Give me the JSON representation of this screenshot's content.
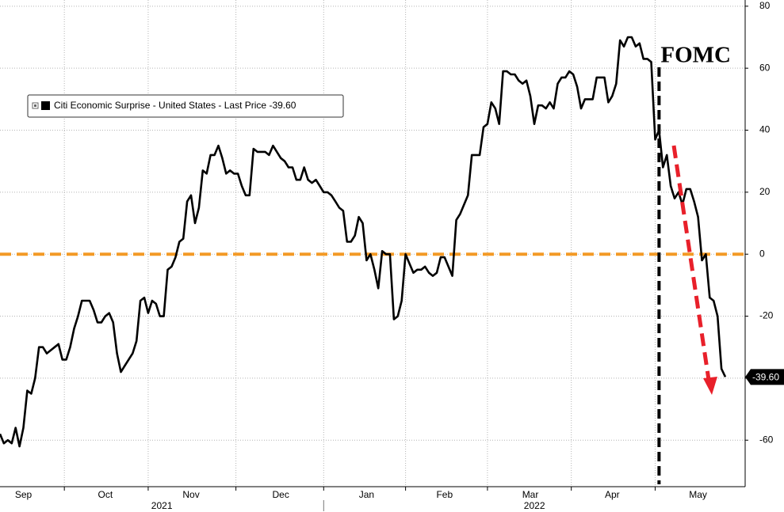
{
  "chart_data": {
    "type": "line",
    "categories": [
      null,
      null,
      null,
      null,
      null,
      null,
      "Sep",
      null,
      null,
      null,
      null,
      null,
      null,
      null,
      null,
      null,
      null,
      null,
      null,
      null,
      null,
      null,
      null,
      null,
      null,
      null,
      null,
      "Oct",
      null,
      null,
      null,
      null,
      null,
      null,
      null,
      null,
      null,
      null,
      null,
      null,
      null,
      null,
      null,
      null,
      null,
      null,
      null,
      null,
      null,
      "Nov",
      null,
      null,
      null,
      null,
      null,
      null,
      null,
      null,
      null,
      null,
      null,
      null,
      null,
      null,
      null,
      null,
      null,
      null,
      null,
      null,
      null,
      null,
      "Dec",
      null,
      null,
      null,
      null,
      null,
      null,
      null,
      null,
      null,
      null,
      null,
      null,
      null,
      null,
      null,
      null,
      null,
      null,
      null,
      null,
      null,
      "Jan",
      null,
      null,
      null,
      null,
      null,
      null,
      null,
      null,
      null,
      null,
      null,
      null,
      null,
      null,
      null,
      null,
      null,
      null,
      null,
      "Feb",
      null,
      null,
      null,
      null,
      null,
      null,
      null,
      null,
      null,
      null,
      null,
      null,
      null,
      null,
      null,
      null,
      null,
      null,
      null,
      null,
      null,
      "Mar",
      null,
      null,
      null,
      null,
      null,
      null,
      null,
      null,
      null,
      null,
      null,
      null,
      null,
      null,
      null,
      null,
      null,
      null,
      null,
      null,
      "Apr",
      null,
      null,
      null,
      null,
      null,
      null,
      null,
      null,
      null,
      null,
      null,
      null,
      null,
      null,
      null,
      null,
      null,
      null,
      null,
      null,
      null,
      "May",
      null,
      null,
      null,
      null,
      null,
      null,
      null
    ],
    "years": [
      {
        "label": "2021",
        "months": 4
      },
      {
        "label": "2022",
        "months": 5
      }
    ],
    "series": [
      {
        "name": "Citi Economic Surprise - United States - Last Price",
        "color": "#000000",
        "last_label": "-39.60",
        "values": [
          -58,
          -61,
          -60,
          -61,
          -56,
          -62,
          -56,
          -44,
          -45,
          -40,
          -30,
          -30,
          -32,
          -31,
          -30,
          -29,
          -34,
          -34,
          -30,
          -24,
          -20,
          -15,
          -15,
          -15,
          -18,
          -22,
          -22,
          -20,
          -19,
          -22,
          -32,
          -38,
          -36,
          -34,
          -32,
          -28,
          -15,
          -14,
          -19,
          -15,
          -16,
          -20,
          -20,
          -5,
          -4,
          -1,
          4,
          5,
          17,
          19,
          10,
          15,
          27,
          26,
          32,
          32,
          35,
          31,
          26,
          27,
          26,
          26,
          22,
          19,
          19,
          34,
          33,
          33,
          33,
          32,
          35,
          33,
          31,
          30,
          28,
          28,
          24,
          24,
          28,
          24,
          23,
          24,
          22,
          20,
          20,
          19,
          17,
          15,
          14,
          4,
          4,
          6,
          12,
          10,
          -2,
          0,
          -5,
          -11,
          1,
          0,
          0,
          -21,
          -20,
          -15,
          0,
          -3,
          -6,
          -5,
          -5,
          -4,
          -6,
          -7,
          -6,
          -1,
          -1,
          -4,
          -7,
          11,
          13,
          16,
          19,
          32,
          32,
          32,
          41,
          42,
          49,
          47,
          42,
          59,
          59,
          58,
          58,
          56,
          55,
          56,
          51,
          42,
          48,
          48,
          47,
          49,
          47,
          55,
          57,
          57,
          59,
          58,
          54,
          47,
          50,
          50,
          50,
          57,
          57,
          57,
          49,
          51,
          55,
          69,
          67,
          70,
          70,
          67,
          68,
          63,
          63,
          62,
          37,
          40,
          28,
          32,
          22,
          18,
          20,
          16,
          21,
          21,
          17,
          12,
          -2,
          0,
          -14,
          -15,
          -20,
          -37,
          -39.6
        ]
      }
    ],
    "ylim": [
      -75,
      82
    ],
    "yticks": [
      -60,
      -40,
      -20,
      0,
      20,
      40,
      60,
      80
    ],
    "grid": true,
    "legend": "upper left",
    "reference_line": {
      "value": 0,
      "color": "#f39a26"
    },
    "events": [
      {
        "label": "FOMC",
        "at": 169
      }
    ]
  }
}
